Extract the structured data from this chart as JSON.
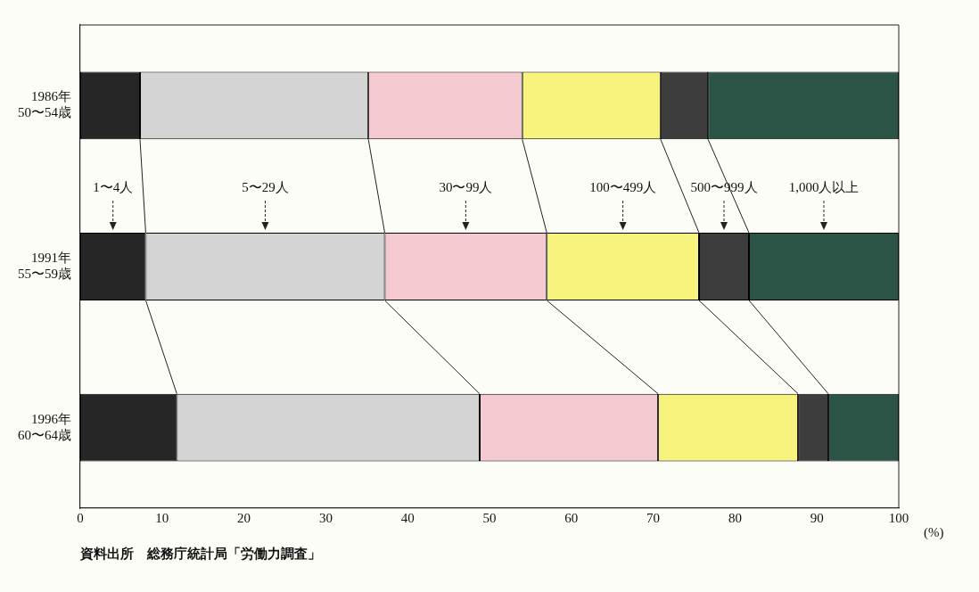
{
  "chart_data": {
    "type": "bar",
    "orientation": "horizontal",
    "stacked": true,
    "categories": [
      "1986年 50〜54歳",
      "1991年 55〜59歳",
      "1996年 60〜64歳"
    ],
    "series": [
      {
        "name": "1〜4人",
        "color": "#262626",
        "values": [
          7.3,
          8.0,
          11.8
        ]
      },
      {
        "name": "5〜29人",
        "color": "#d4d4d4",
        "values": [
          27.9,
          29.2,
          37.0
        ]
      },
      {
        "name": "30〜99人",
        "color": "#f4c9cf",
        "values": [
          18.8,
          19.8,
          21.8
        ]
      },
      {
        "name": "100〜499人",
        "color": "#f7f37c",
        "values": [
          16.9,
          18.6,
          17.1
        ]
      },
      {
        "name": "500〜999人",
        "color": "#3d3d3d",
        "values": [
          5.8,
          6.1,
          3.7
        ]
      },
      {
        "name": "1,000人以上",
        "color": "#2c5446",
        "values": [
          23.3,
          18.3,
          8.6
        ]
      }
    ],
    "xlim": [
      0,
      100
    ],
    "xticks": [
      0,
      10,
      20,
      30,
      40,
      50,
      60,
      70,
      80,
      90,
      100
    ],
    "xlabel": "(%)",
    "grid": false,
    "legend": false,
    "annotations": [
      "資料出所　総務庁統計局「労働力調査」"
    ]
  }
}
